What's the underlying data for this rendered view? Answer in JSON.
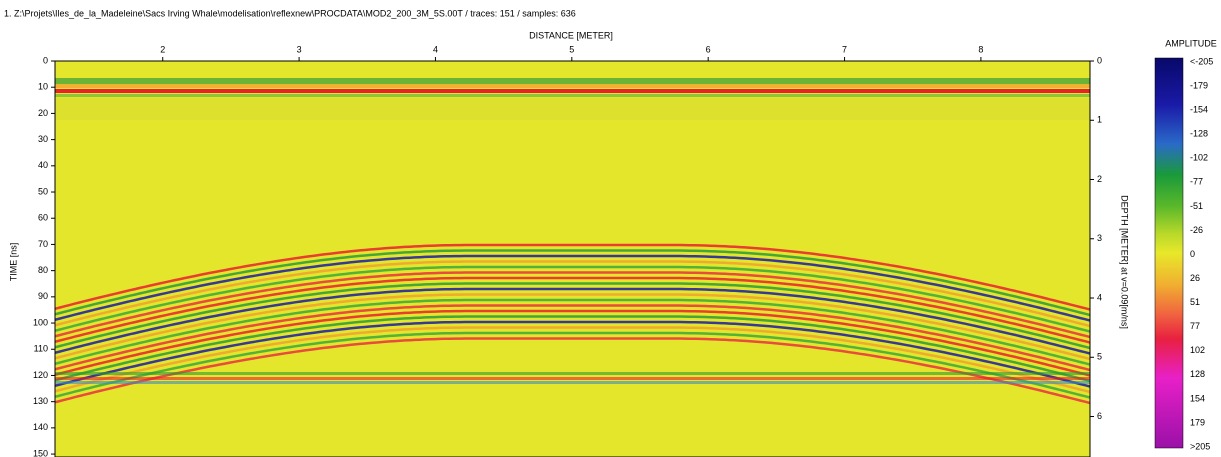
{
  "header": {
    "title": "1. Z:\\Projets\\Iles_de_la_Madeleine\\Sacs Irving Whale\\modelisation\\reflexnew\\PROCDATA\\MOD2_200_3M_5S.00T / traces: 151 / samples: 636"
  },
  "x_axis": {
    "label": "DISTANCE [METER]",
    "ticks": [
      2,
      3,
      4,
      5,
      6,
      7,
      8
    ],
    "range": [
      1.21,
      8.8
    ]
  },
  "y_axis": {
    "label": "TIME [ns]",
    "ticks": [
      0,
      10,
      20,
      30,
      40,
      50,
      60,
      70,
      80,
      90,
      100,
      110,
      120,
      130,
      140,
      150
    ],
    "range": [
      0,
      151.5
    ]
  },
  "y2_axis": {
    "label": "DEPTH [METER] at v=0.09[m/ns]",
    "ticks": [
      0,
      1,
      2,
      3,
      4,
      5,
      6
    ],
    "range": [
      0,
      6.7
    ]
  },
  "colorbar": {
    "title": "AMPLITUDE",
    "labels": [
      "<-205",
      "-179",
      "-154",
      "-128",
      "-102",
      "-77",
      "-51",
      "-26",
      "0",
      "26",
      "51",
      "77",
      "102",
      "128",
      "154",
      "179",
      ">205"
    ]
  }
}
